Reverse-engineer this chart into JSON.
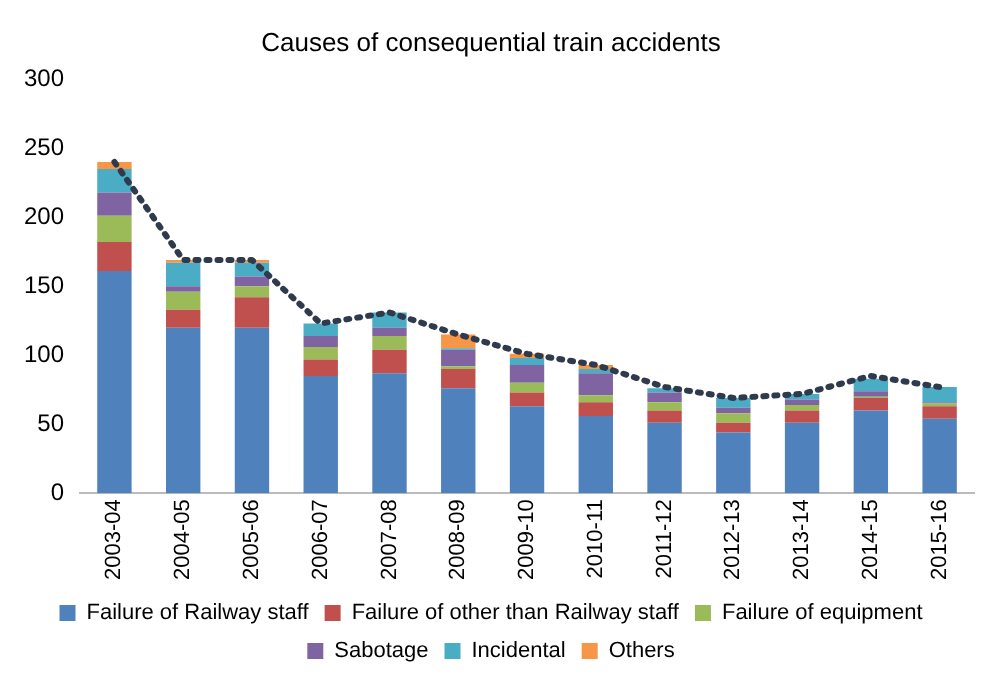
{
  "chart_data": {
    "type": "bar",
    "title": "Causes of consequential train accidents",
    "stacked": true,
    "categories": [
      "2003-04",
      "2004-05",
      "2005-06",
      "2006-07",
      "2007-08",
      "2008-09",
      "2009-10",
      "2010-11",
      "2011-12",
      "2012-13",
      "2013-14",
      "2014-15",
      "2015-16"
    ],
    "series": [
      {
        "name": "Failure of Railway staff",
        "color": "#4f81bd",
        "values": [
          161,
          120,
          120,
          85,
          87,
          76,
          63,
          56,
          51,
          44,
          51,
          60,
          54
        ]
      },
      {
        "name": "Failure of other than Railway staff",
        "color": "#c0504d",
        "values": [
          21,
          13,
          22,
          12,
          17,
          14,
          10,
          10,
          9,
          7,
          9,
          9,
          9
        ]
      },
      {
        "name": "Failure of equipment",
        "color": "#9bbb59",
        "values": [
          19,
          13,
          8,
          9,
          10,
          2,
          7,
          5,
          6,
          7,
          4,
          1,
          2
        ]
      },
      {
        "name": "Sabotage",
        "color": "#8064a2",
        "values": [
          17,
          4,
          7,
          8,
          6,
          12,
          13,
          16,
          7,
          4,
          4,
          4,
          1
        ]
      },
      {
        "name": "Incidental",
        "color": "#4bacc6",
        "values": [
          17,
          17,
          10,
          9,
          11,
          1,
          5,
          3,
          3,
          7,
          4,
          9,
          11
        ]
      },
      {
        "name": "Others",
        "color": "#f79646",
        "values": [
          5,
          2,
          2,
          0,
          0,
          10,
          3,
          3,
          null,
          0,
          0,
          null,
          0
        ]
      },
      {
        "type": "line",
        "color": "#2f3b4c",
        "line_style": "dotted",
        "marker": "none",
        "values": [
          240,
          169,
          169,
          123,
          131,
          115,
          101,
          93,
          77,
          69,
          72,
          85,
          77
        ]
      }
    ],
    "ylim": [
      0,
      300
    ],
    "yticks": [
      0,
      50,
      100,
      150,
      200,
      250,
      300
    ],
    "grid": false,
    "legend": "bottom"
  }
}
